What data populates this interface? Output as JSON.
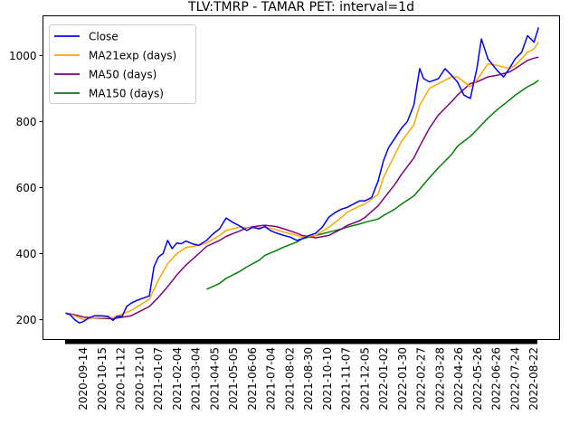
{
  "chart_data": {
    "type": "line",
    "title": "TLV:TMRP - TAMAR PET: interval=1d",
    "xlabel": "",
    "ylabel": "",
    "ylim": [
      140,
      1120
    ],
    "y_ticks": [
      200,
      400,
      600,
      800,
      1000
    ],
    "x_ticks": [
      "2020-09-14",
      "2020-10-15",
      "2020-11-12",
      "2020-12-10",
      "2021-01-07",
      "2021-02-04",
      "2021-03-04",
      "2021-04-05",
      "2021-05-05",
      "2021-06-06",
      "2021-07-04",
      "2021-08-02",
      "2021-08-30",
      "2021-10-10",
      "2021-11-07",
      "2021-12-05",
      "2022-01-02",
      "2022-01-30",
      "2022-02-27",
      "2022-03-28",
      "2022-04-26",
      "2022-05-26",
      "2022-06-26",
      "2022-07-24",
      "2022-08-22"
    ],
    "x_range": [
      "2020-08-31",
      "2022-09-01"
    ],
    "grid": false,
    "legend_position": "top-left",
    "series": [
      {
        "name": "Close",
        "color": "#0000ff",
        "points": [
          [
            "2020-08-31",
            220
          ],
          [
            "2020-09-07",
            215
          ],
          [
            "2020-09-14",
            200
          ],
          [
            "2020-09-21",
            190
          ],
          [
            "2020-09-28",
            195
          ],
          [
            "2020-10-05",
            205
          ],
          [
            "2020-10-15",
            212
          ],
          [
            "2020-10-25",
            212
          ],
          [
            "2020-11-04",
            210
          ],
          [
            "2020-11-12",
            198
          ],
          [
            "2020-11-18",
            210
          ],
          [
            "2020-11-26",
            210
          ],
          [
            "2020-12-03",
            240
          ],
          [
            "2020-12-10",
            250
          ],
          [
            "2020-12-18",
            258
          ],
          [
            "2020-12-28",
            265
          ],
          [
            "2021-01-07",
            272
          ],
          [
            "2021-01-14",
            360
          ],
          [
            "2021-01-21",
            390
          ],
          [
            "2021-01-28",
            400
          ],
          [
            "2021-02-04",
            440
          ],
          [
            "2021-02-11",
            415
          ],
          [
            "2021-02-18",
            432
          ],
          [
            "2021-02-25",
            430
          ],
          [
            "2021-03-04",
            438
          ],
          [
            "2021-03-14",
            430
          ],
          [
            "2021-03-24",
            425
          ],
          [
            "2021-04-05",
            440
          ],
          [
            "2021-04-15",
            460
          ],
          [
            "2021-04-25",
            475
          ],
          [
            "2021-05-05",
            508
          ],
          [
            "2021-05-15",
            495
          ],
          [
            "2021-05-25",
            485
          ],
          [
            "2021-06-06",
            470
          ],
          [
            "2021-06-15",
            480
          ],
          [
            "2021-06-25",
            475
          ],
          [
            "2021-07-04",
            482
          ],
          [
            "2021-07-12",
            470
          ],
          [
            "2021-07-22",
            462
          ],
          [
            "2021-08-02",
            455
          ],
          [
            "2021-08-12",
            450
          ],
          [
            "2021-08-22",
            440
          ],
          [
            "2021-08-30",
            445
          ],
          [
            "2021-09-10",
            455
          ],
          [
            "2021-09-20",
            462
          ],
          [
            "2021-09-30",
            480
          ],
          [
            "2021-10-10",
            510
          ],
          [
            "2021-10-20",
            525
          ],
          [
            "2021-10-30",
            535
          ],
          [
            "2021-11-07",
            540
          ],
          [
            "2021-11-17",
            550
          ],
          [
            "2021-11-27",
            560
          ],
          [
            "2021-12-05",
            560
          ],
          [
            "2021-12-15",
            570
          ],
          [
            "2021-12-25",
            620
          ],
          [
            "2022-01-02",
            680
          ],
          [
            "2022-01-10",
            720
          ],
          [
            "2022-01-20",
            750
          ],
          [
            "2022-01-30",
            780
          ],
          [
            "2022-02-08",
            800
          ],
          [
            "2022-02-18",
            850
          ],
          [
            "2022-02-27",
            960
          ],
          [
            "2022-03-05",
            930
          ],
          [
            "2022-03-14",
            920
          ],
          [
            "2022-03-28",
            930
          ],
          [
            "2022-04-07",
            960
          ],
          [
            "2022-04-17",
            940
          ],
          [
            "2022-04-26",
            920
          ],
          [
            "2022-05-06",
            880
          ],
          [
            "2022-05-16",
            870
          ],
          [
            "2022-05-26",
            960
          ],
          [
            "2022-06-02",
            1050
          ],
          [
            "2022-06-12",
            990
          ],
          [
            "2022-06-26",
            955
          ],
          [
            "2022-07-06",
            935
          ],
          [
            "2022-07-15",
            960
          ],
          [
            "2022-07-24",
            990
          ],
          [
            "2022-08-03",
            1010
          ],
          [
            "2022-08-12",
            1060
          ],
          [
            "2022-08-22",
            1040
          ],
          [
            "2022-08-29",
            1085
          ]
        ]
      },
      {
        "name": "MA21exp (days)",
        "color": "#ffa500",
        "points": [
          [
            "2020-08-31",
            220
          ],
          [
            "2020-09-14",
            212
          ],
          [
            "2020-09-28",
            200
          ],
          [
            "2020-10-15",
            206
          ],
          [
            "2020-11-12",
            206
          ],
          [
            "2020-12-10",
            228
          ],
          [
            "2021-01-07",
            262
          ],
          [
            "2021-01-21",
            320
          ],
          [
            "2021-02-04",
            370
          ],
          [
            "2021-02-18",
            400
          ],
          [
            "2021-03-04",
            418
          ],
          [
            "2021-03-24",
            425
          ],
          [
            "2021-04-05",
            432
          ],
          [
            "2021-04-25",
            455
          ],
          [
            "2021-05-05",
            470
          ],
          [
            "2021-05-25",
            480
          ],
          [
            "2021-06-06",
            478
          ],
          [
            "2021-06-25",
            478
          ],
          [
            "2021-07-04",
            480
          ],
          [
            "2021-07-22",
            472
          ],
          [
            "2021-08-02",
            465
          ],
          [
            "2021-08-22",
            455
          ],
          [
            "2021-08-30",
            450
          ],
          [
            "2021-09-20",
            455
          ],
          [
            "2021-10-10",
            480
          ],
          [
            "2021-10-30",
            510
          ],
          [
            "2021-11-07",
            525
          ],
          [
            "2021-11-27",
            545
          ],
          [
            "2021-12-05",
            550
          ],
          [
            "2021-12-25",
            580
          ],
          [
            "2022-01-02",
            630
          ],
          [
            "2022-01-20",
            700
          ],
          [
            "2022-01-30",
            740
          ],
          [
            "2022-02-18",
            790
          ],
          [
            "2022-02-27",
            850
          ],
          [
            "2022-03-14",
            900
          ],
          [
            "2022-03-28",
            915
          ],
          [
            "2022-04-17",
            935
          ],
          [
            "2022-04-26",
            935
          ],
          [
            "2022-05-16",
            905
          ],
          [
            "2022-05-26",
            925
          ],
          [
            "2022-06-12",
            975
          ],
          [
            "2022-06-26",
            970
          ],
          [
            "2022-07-15",
            960
          ],
          [
            "2022-07-24",
            970
          ],
          [
            "2022-08-12",
            1010
          ],
          [
            "2022-08-22",
            1020
          ],
          [
            "2022-08-29",
            1040
          ]
        ]
      },
      {
        "name": "MA50 (days)",
        "color": "#800080",
        "points": [
          [
            "2020-08-31",
            220
          ],
          [
            "2020-09-14",
            215
          ],
          [
            "2020-09-28",
            208
          ],
          [
            "2020-10-15",
            205
          ],
          [
            "2020-11-12",
            203
          ],
          [
            "2020-12-10",
            212
          ],
          [
            "2021-01-07",
            240
          ],
          [
            "2021-01-21",
            268
          ],
          [
            "2021-02-04",
            300
          ],
          [
            "2021-02-18",
            335
          ],
          [
            "2021-03-04",
            365
          ],
          [
            "2021-03-24",
            400
          ],
          [
            "2021-04-05",
            422
          ],
          [
            "2021-04-25",
            440
          ],
          [
            "2021-05-05",
            452
          ],
          [
            "2021-05-25",
            468
          ],
          [
            "2021-06-06",
            478
          ],
          [
            "2021-06-25",
            484
          ],
          [
            "2021-07-04",
            486
          ],
          [
            "2021-07-22",
            482
          ],
          [
            "2021-08-02",
            475
          ],
          [
            "2021-08-22",
            462
          ],
          [
            "2021-08-30",
            455
          ],
          [
            "2021-09-20",
            448
          ],
          [
            "2021-10-10",
            455
          ],
          [
            "2021-10-30",
            475
          ],
          [
            "2021-11-07",
            485
          ],
          [
            "2021-11-27",
            500
          ],
          [
            "2021-12-05",
            510
          ],
          [
            "2021-12-25",
            545
          ],
          [
            "2022-01-02",
            565
          ],
          [
            "2022-01-20",
            610
          ],
          [
            "2022-01-30",
            640
          ],
          [
            "2022-02-18",
            690
          ],
          [
            "2022-02-27",
            725
          ],
          [
            "2022-03-14",
            780
          ],
          [
            "2022-03-28",
            820
          ],
          [
            "2022-04-17",
            860
          ],
          [
            "2022-04-26",
            880
          ],
          [
            "2022-05-16",
            915
          ],
          [
            "2022-05-26",
            920
          ],
          [
            "2022-06-12",
            935
          ],
          [
            "2022-06-26",
            940
          ],
          [
            "2022-07-15",
            950
          ],
          [
            "2022-07-24",
            960
          ],
          [
            "2022-08-12",
            985
          ],
          [
            "2022-08-22",
            992
          ],
          [
            "2022-08-29",
            995
          ]
        ]
      },
      {
        "name": "MA150 (days)",
        "color": "#008000",
        "points": [
          [
            "2021-04-05",
            292
          ],
          [
            "2021-04-25",
            310
          ],
          [
            "2021-05-05",
            325
          ],
          [
            "2021-05-25",
            345
          ],
          [
            "2021-06-06",
            360
          ],
          [
            "2021-06-25",
            380
          ],
          [
            "2021-07-04",
            395
          ],
          [
            "2021-07-22",
            410
          ],
          [
            "2021-08-02",
            420
          ],
          [
            "2021-08-22",
            435
          ],
          [
            "2021-08-30",
            445
          ],
          [
            "2021-09-20",
            455
          ],
          [
            "2021-10-10",
            465
          ],
          [
            "2021-10-30",
            475
          ],
          [
            "2021-11-07",
            480
          ],
          [
            "2021-11-27",
            490
          ],
          [
            "2021-12-05",
            495
          ],
          [
            "2021-12-25",
            505
          ],
          [
            "2022-01-02",
            515
          ],
          [
            "2022-01-20",
            535
          ],
          [
            "2022-01-30",
            550
          ],
          [
            "2022-02-18",
            575
          ],
          [
            "2022-02-27",
            595
          ],
          [
            "2022-03-14",
            630
          ],
          [
            "2022-03-28",
            660
          ],
          [
            "2022-04-17",
            700
          ],
          [
            "2022-04-26",
            725
          ],
          [
            "2022-05-16",
            755
          ],
          [
            "2022-05-26",
            775
          ],
          [
            "2022-06-12",
            810
          ],
          [
            "2022-06-26",
            835
          ],
          [
            "2022-07-15",
            865
          ],
          [
            "2022-07-24",
            880
          ],
          [
            "2022-08-12",
            905
          ],
          [
            "2022-08-22",
            915
          ],
          [
            "2022-08-29",
            925
          ]
        ]
      }
    ]
  }
}
